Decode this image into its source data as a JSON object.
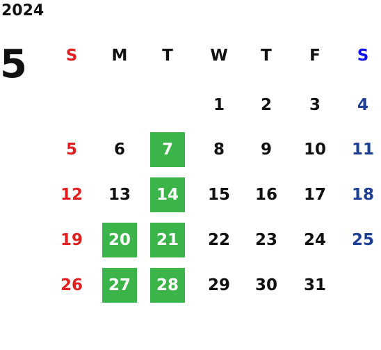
{
  "year": "2024",
  "month": "5",
  "weekdays": [
    "S",
    "M",
    "T",
    "W",
    "T",
    "F",
    "S"
  ],
  "weeks": [
    [
      null,
      null,
      null,
      1,
      2,
      3,
      4
    ],
    [
      5,
      6,
      7,
      8,
      9,
      10,
      11
    ],
    [
      12,
      13,
      14,
      15,
      16,
      17,
      18
    ],
    [
      19,
      20,
      21,
      22,
      23,
      24,
      25
    ],
    [
      26,
      27,
      28,
      29,
      30,
      31,
      null
    ]
  ],
  "highlighted_days": [
    7,
    14,
    20,
    21,
    27,
    28
  ],
  "highlight_color": "#3bb44a",
  "sunday_color": "#e02020",
  "saturday_header_color": "#1010ee",
  "saturday_color": "#1c3f94"
}
